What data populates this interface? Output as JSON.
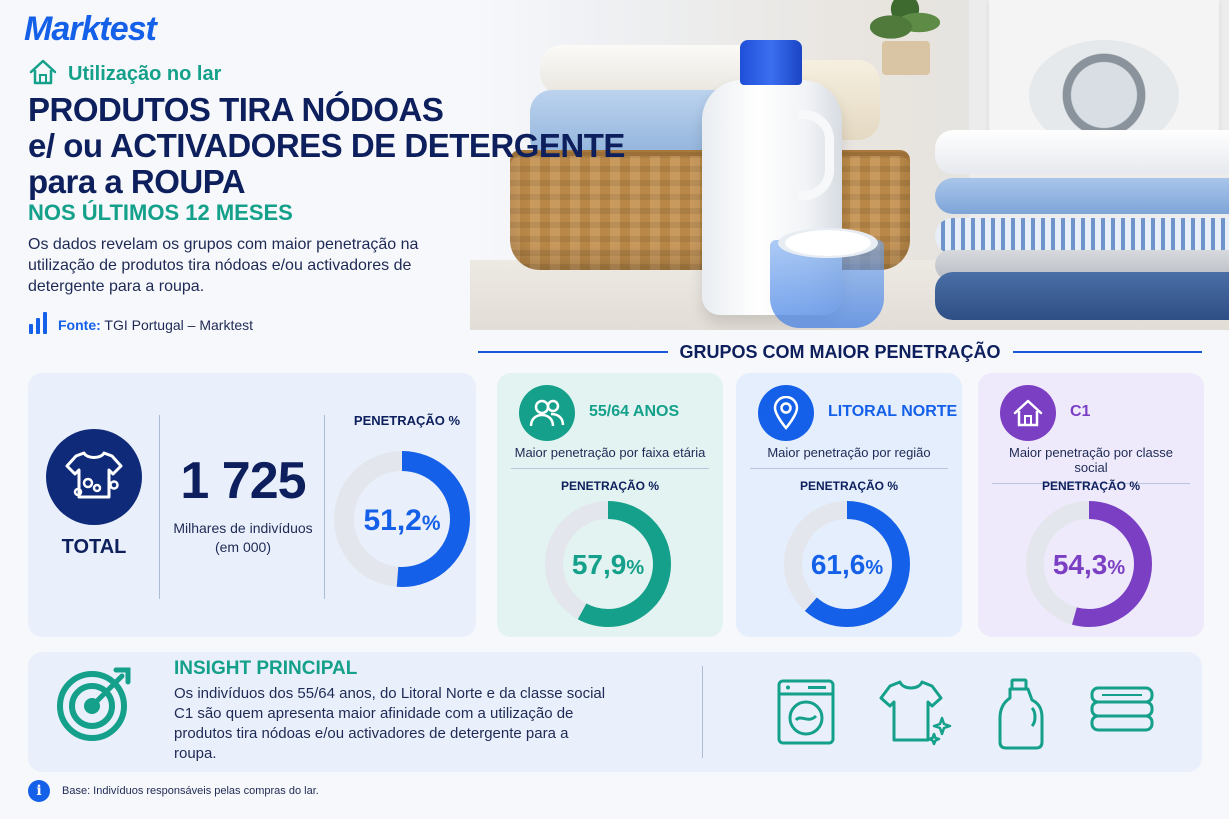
{
  "brand": "Marktest",
  "subheading": "Utilização no lar",
  "title_lines": [
    "PRODUTOS TIRA NÓDOAS",
    "e/ ou ACTIVADORES DE DETERGENTE",
    "para a ROUPA"
  ],
  "period": "NOS ÚLTIMOS 12 MESES",
  "description": "Os dados revelam os grupos com maior penetração na utilização de produtos tira nódoas e/ou activadores de detergente para a roupa.",
  "source": {
    "label": "Fonte:",
    "text": "TGI Portugal – Marktest"
  },
  "groups_heading": "GRUPOS COM MAIOR PENETRAÇÃO",
  "total": {
    "label": "TOTAL",
    "value": "1 725",
    "value_caption_1": "Milhares de indivíduos",
    "value_caption_2": "(em 000)",
    "penetration_label": "PENETRAÇÃO %",
    "penetration_value": "51,2",
    "penetration_pct": 51.2,
    "color": "#1560e8"
  },
  "groups": [
    {
      "name": "55/64 ANOS",
      "description": "Maior penetração por faixa etária",
      "penetration_label": "PENETRAÇÃO %",
      "value": "57,9",
      "pct": 57.9,
      "color": "#14a08a",
      "icon": "people-icon",
      "card_bg": "#e3f3f1"
    },
    {
      "name": "LITORAL NORTE",
      "description": "Maior penetração por região",
      "penetration_label": "PENETRAÇÃO %",
      "value": "61,6",
      "pct": 61.6,
      "color": "#1560e8",
      "icon": "location-pin-icon",
      "card_bg": "#e5eefc"
    },
    {
      "name": "C1",
      "description": "Maior penetração por classe social",
      "penetration_label": "PENETRAÇÃO %",
      "value": "54,3",
      "pct": 54.3,
      "color": "#7b3fc4",
      "icon": "house-icon",
      "card_bg": "#efeafb"
    }
  ],
  "pct_symbol": "%",
  "insight": {
    "title": "INSIGHT PRINCIPAL",
    "text": "Os indivíduos dos 55/64 anos, do Litoral Norte e da classe social C1 são quem apresenta maior afinidade com a utilização de produtos tira nódoas e/ou activadores de detergente para a roupa.",
    "icons": [
      "washing-machine-icon",
      "sparkling-shirt-icon",
      "detergent-bottle-icon",
      "folded-towels-icon"
    ]
  },
  "base_note": "Base: Indivíduos responsáveis pelas compras do lar.",
  "colors": {
    "navy": "#0d1f5c",
    "teal": "#14a08a",
    "blue": "#1560e8",
    "purple": "#7b3fc4",
    "track": "#e3e6ec"
  }
}
